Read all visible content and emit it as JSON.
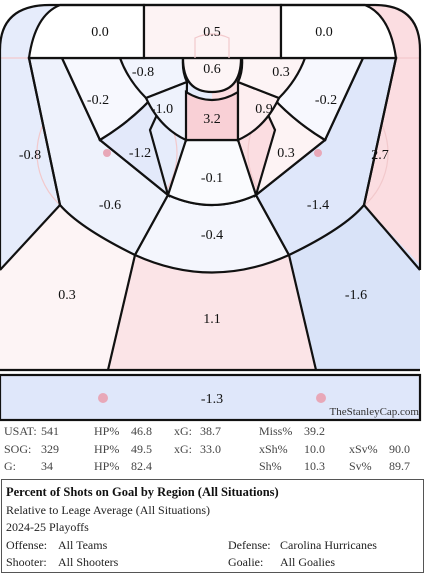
{
  "chart_data": {
    "type": "heatmap",
    "title": "Percent of Shots on Goal by Region (All Situations)",
    "subtitle": "Relative to Leage Average (All Situations)",
    "regions": [
      {
        "name": "behind-net-left",
        "value": "0.0"
      },
      {
        "name": "behind-net-center",
        "value": "0.5"
      },
      {
        "name": "behind-net-right",
        "value": "0.0"
      },
      {
        "name": "crease",
        "value": "0.6"
      },
      {
        "name": "inner-top-left",
        "value": "-0.8"
      },
      {
        "name": "inner-top-right",
        "value": "0.3"
      },
      {
        "name": "inner-left",
        "value": "-1.0"
      },
      {
        "name": "inner-slot",
        "value": "3.2"
      },
      {
        "name": "inner-right",
        "value": "0.9"
      },
      {
        "name": "mid-top-left",
        "value": "-0.2"
      },
      {
        "name": "mid-top-right",
        "value": "-0.2"
      },
      {
        "name": "mid-left",
        "value": "-1.2"
      },
      {
        "name": "mid-right",
        "value": "0.3"
      },
      {
        "name": "mid-center",
        "value": "-0.1"
      },
      {
        "name": "outer-left",
        "value": "-0.6"
      },
      {
        "name": "outer-center",
        "value": "-0.4"
      },
      {
        "name": "outer-right",
        "value": "-1.4"
      },
      {
        "name": "far-left-wing",
        "value": "-0.8"
      },
      {
        "name": "far-right-wing",
        "value": "2.7"
      },
      {
        "name": "point-left",
        "value": "0.3"
      },
      {
        "name": "point-center",
        "value": "1.1"
      },
      {
        "name": "point-right",
        "value": "-1.6"
      },
      {
        "name": "neutral-zone",
        "value": "-1.3"
      }
    ]
  },
  "credit": "TheStanleyCap.com",
  "stats": {
    "row1": {
      "usat_label": "USAT:",
      "usat": "541",
      "hp1_label": "HP%",
      "hp1": "46.8",
      "xg1_label": "xG:",
      "xg1": "38.7",
      "miss_label": "Miss%",
      "miss": "39.2"
    },
    "row2": {
      "sog_label": "SOG:",
      "sog": "329",
      "hp2_label": "HP%",
      "hp2": "49.5",
      "xg2_label": "xG:",
      "xg2": "33.0",
      "xsh_label": "xSh%",
      "xsh": "10.0",
      "xsv_label": "xSv%",
      "xsv": "90.0"
    },
    "row3": {
      "g_label": "G:",
      "g": "34",
      "hp3_label": "HP%",
      "hp3": "82.4",
      "sh_label": "Sh%",
      "sh": "10.3",
      "sv_label": "Sv%",
      "sv": "89.7"
    }
  },
  "info": {
    "title": "Percent of Shots on Goal by Region (All Situations)",
    "subtitle": "Relative to Leage Average (All Situations)",
    "season": "2024-25 Playoffs",
    "offense_label": "Offense:",
    "offense": "All Teams",
    "shooter_label": "Shooter:",
    "shooter": "All Shooters",
    "defense_label": "Defense:",
    "defense": "Carolina Hurricanes",
    "goalie_label": "Goalie:",
    "goalie": "All Goalies"
  },
  "colors": {
    "positive": "#f9d0d6",
    "negative": "#d6e0f8",
    "neutral": "#ffffff",
    "rink_lines": "#f2c9cc",
    "faceoff_dot": "#e8a8b8",
    "border": "#111111"
  }
}
